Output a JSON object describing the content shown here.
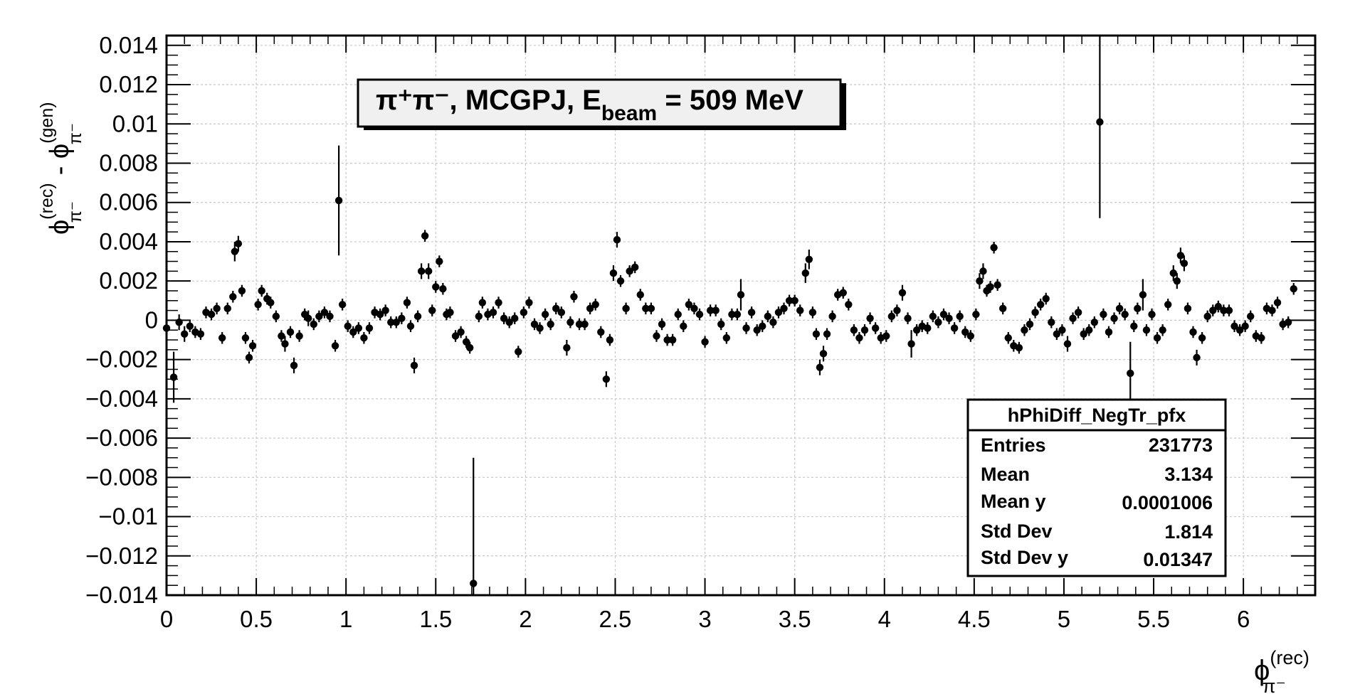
{
  "chart_data": {
    "type": "scatter",
    "title": "π⁺π⁻, MCGPJ, E",
    "title_sub": "beam",
    "title_tail": " = 509 MeV",
    "xlabel": "ϕ",
    "xlabel_sup": "(rec)",
    "xlabel_sub": "π⁻",
    "ylabel_main": "ϕ",
    "ylabel_sup1": "(rec)",
    "ylabel_sub1": "π⁻",
    "ylabel_mid": " - ϕ",
    "ylabel_sup2": "(gen)",
    "ylabel_sub2": "π⁻",
    "xlim": [
      0,
      6.4
    ],
    "ylim": [
      -0.014,
      0.0145
    ],
    "grid": true,
    "x_ticks": [
      "0",
      "0.5",
      "1",
      "1.5",
      "2",
      "2.5",
      "3",
      "3.5",
      "4",
      "4.5",
      "5",
      "5.5",
      "6"
    ],
    "x_tick_values": [
      0,
      0.5,
      1,
      1.5,
      2,
      2.5,
      3,
      3.5,
      4,
      4.5,
      5,
      5.5,
      6
    ],
    "y_ticks": [
      "0.014",
      "0.012",
      "0.01",
      "0.008",
      "0.006",
      "0.004",
      "0.002",
      "0",
      "−0.002",
      "−0.004",
      "−0.006",
      "−0.008",
      "−0.01",
      "−0.012",
      "−0.014"
    ],
    "y_tick_values": [
      0.014,
      0.012,
      0.01,
      0.008,
      0.006,
      0.004,
      0.002,
      0,
      -0.002,
      -0.004,
      -0.006,
      -0.008,
      -0.01,
      -0.012,
      -0.014
    ],
    "stats_box": {
      "name": "hPhiDiff_NegTr_pfx",
      "rows": [
        {
          "label": "Entries",
          "value": "231773"
        },
        {
          "label": "Mean",
          "value": "3.134"
        },
        {
          "label": "Mean y",
          "value": "0.0001006"
        },
        {
          "label": "Std Dev",
          "value": "1.814"
        },
        {
          "label": "Std Dev y",
          "value": "0.01347"
        }
      ]
    },
    "points": [
      [
        0.0,
        -0.0004,
        0.0003
      ],
      [
        0.04,
        -0.0029,
        0.0013
      ],
      [
        0.07,
        -0.0001,
        0.0004
      ],
      [
        0.1,
        -0.0007,
        0.0004
      ],
      [
        0.13,
        -0.0003,
        0.0003
      ],
      [
        0.16,
        -0.0006,
        0.0003
      ],
      [
        0.19,
        -0.0007,
        0.0003
      ],
      [
        0.22,
        0.0004,
        0.0003
      ],
      [
        0.25,
        0.0003,
        0.0003
      ],
      [
        0.28,
        0.0006,
        0.0003
      ],
      [
        0.31,
        -0.0009,
        0.0003
      ],
      [
        0.34,
        0.0006,
        0.0003
      ],
      [
        0.37,
        0.0012,
        0.0003
      ],
      [
        0.38,
        0.0035,
        0.0005
      ],
      [
        0.4,
        0.0039,
        0.0004
      ],
      [
        0.42,
        0.0015,
        0.0003
      ],
      [
        0.44,
        -0.0009,
        0.0003
      ],
      [
        0.46,
        -0.0019,
        0.0003
      ],
      [
        0.48,
        -0.0013,
        0.0003
      ],
      [
        0.51,
        0.0008,
        0.0003
      ],
      [
        0.53,
        0.0015,
        0.0003
      ],
      [
        0.56,
        0.0011,
        0.0003
      ],
      [
        0.58,
        0.0009,
        0.0003
      ],
      [
        0.61,
        0.0002,
        0.0003
      ],
      [
        0.64,
        -0.0008,
        0.0003
      ],
      [
        0.66,
        -0.0012,
        0.0004
      ],
      [
        0.69,
        -0.0006,
        0.0003
      ],
      [
        0.71,
        -0.0023,
        0.0004
      ],
      [
        0.74,
        -0.0008,
        0.0003
      ],
      [
        0.77,
        0.0003,
        0.0003
      ],
      [
        0.79,
        0.0001,
        0.0004
      ],
      [
        0.82,
        -0.0002,
        0.0003
      ],
      [
        0.85,
        0.0002,
        0.0003
      ],
      [
        0.88,
        0.0004,
        0.0003
      ],
      [
        0.91,
        0.0002,
        0.0003
      ],
      [
        0.94,
        -0.0013,
        0.0003
      ],
      [
        0.96,
        0.0061,
        0.0028
      ],
      [
        0.98,
        0.0008,
        0.0003
      ],
      [
        1.01,
        -0.0003,
        0.0003
      ],
      [
        1.04,
        -0.0006,
        0.0003
      ],
      [
        1.07,
        -0.0004,
        0.0003
      ],
      [
        1.1,
        -0.0009,
        0.0003
      ],
      [
        1.13,
        -0.0004,
        0.0003
      ],
      [
        1.16,
        0.0004,
        0.0003
      ],
      [
        1.19,
        0.0003,
        0.0003
      ],
      [
        1.22,
        0.0005,
        0.0003
      ],
      [
        1.25,
        -0.0001,
        0.0003
      ],
      [
        1.28,
        -0.0001,
        0.0003
      ],
      [
        1.31,
        0.0001,
        0.0003
      ],
      [
        1.34,
        0.0009,
        0.0003
      ],
      [
        1.36,
        -0.0003,
        0.0003
      ],
      [
        1.38,
        -0.0023,
        0.0004
      ],
      [
        1.4,
        0.0002,
        0.0003
      ],
      [
        1.42,
        0.0025,
        0.0004
      ],
      [
        1.44,
        0.0043,
        0.0003
      ],
      [
        1.46,
        0.0025,
        0.0004
      ],
      [
        1.48,
        0.0005,
        0.0003
      ],
      [
        1.5,
        0.0017,
        0.0003
      ],
      [
        1.52,
        0.003,
        0.0003
      ],
      [
        1.54,
        0.0016,
        0.0003
      ],
      [
        1.56,
        0.0003,
        0.0003
      ],
      [
        1.58,
        0.0004,
        0.0003
      ],
      [
        1.61,
        -0.0008,
        0.0003
      ],
      [
        1.64,
        -0.0006,
        0.0003
      ],
      [
        1.67,
        -0.0011,
        0.0003
      ],
      [
        1.69,
        -0.0014,
        0.0003
      ],
      [
        1.71,
        -0.0134,
        0.0064
      ],
      [
        1.74,
        0.0002,
        0.0003
      ],
      [
        1.76,
        0.0009,
        0.0003
      ],
      [
        1.79,
        0.0003,
        0.0003
      ],
      [
        1.82,
        0.0004,
        0.0003
      ],
      [
        1.85,
        0.0009,
        0.0003
      ],
      [
        1.88,
        0.0001,
        0.0003
      ],
      [
        1.91,
        -0.0001,
        0.0003
      ],
      [
        1.94,
        0.0001,
        0.0003
      ],
      [
        1.96,
        -0.0016,
        0.0003
      ],
      [
        1.99,
        0.0004,
        0.0003
      ],
      [
        2.02,
        0.0009,
        0.0003
      ],
      [
        2.05,
        -0.0002,
        0.0003
      ],
      [
        2.08,
        -0.0004,
        0.0003
      ],
      [
        2.11,
        0.0003,
        0.0003
      ],
      [
        2.14,
        -0.0002,
        0.0003
      ],
      [
        2.17,
        0.0006,
        0.0003
      ],
      [
        2.2,
        0.0004,
        0.0003
      ],
      [
        2.23,
        -0.0014,
        0.0004
      ],
      [
        2.25,
        -0.0001,
        0.0003
      ],
      [
        2.27,
        0.0012,
        0.0003
      ],
      [
        2.3,
        -0.0002,
        0.0003
      ],
      [
        2.33,
        -0.0002,
        0.0003
      ],
      [
        2.36,
        0.0006,
        0.0003
      ],
      [
        2.39,
        0.0008,
        0.0003
      ],
      [
        2.42,
        -0.0006,
        0.0003
      ],
      [
        2.45,
        -0.003,
        0.0004
      ],
      [
        2.47,
        -0.001,
        0.0003
      ],
      [
        2.49,
        0.0024,
        0.0004
      ],
      [
        2.51,
        0.0041,
        0.0004
      ],
      [
        2.53,
        0.002,
        0.0003
      ],
      [
        2.56,
        0.0006,
        0.0003
      ],
      [
        2.58,
        0.0025,
        0.0003
      ],
      [
        2.61,
        0.0027,
        0.0003
      ],
      [
        2.64,
        0.0013,
        0.0003
      ],
      [
        2.67,
        0.0006,
        0.0003
      ],
      [
        2.7,
        0.0006,
        0.0003
      ],
      [
        2.73,
        -0.0008,
        0.0003
      ],
      [
        2.76,
        -0.0002,
        0.0003
      ],
      [
        2.79,
        -0.001,
        0.0003
      ],
      [
        2.82,
        -0.001,
        0.0003
      ],
      [
        2.85,
        0.0003,
        0.0003
      ],
      [
        2.88,
        -0.0003,
        0.0003
      ],
      [
        2.91,
        0.0008,
        0.0003
      ],
      [
        2.94,
        0.0006,
        0.0003
      ],
      [
        2.97,
        0.0003,
        0.0003
      ],
      [
        3.0,
        -0.0011,
        0.0003
      ],
      [
        3.03,
        0.0005,
        0.0003
      ],
      [
        3.06,
        0.0005,
        0.0003
      ],
      [
        3.09,
        -0.0002,
        0.0003
      ],
      [
        3.12,
        -0.0009,
        0.0003
      ],
      [
        3.15,
        0.0003,
        0.0003
      ],
      [
        3.18,
        0.0003,
        0.0003
      ],
      [
        3.2,
        0.0013,
        0.0008
      ],
      [
        3.23,
        -0.0004,
        0.0003
      ],
      [
        3.26,
        0.0004,
        0.0003
      ],
      [
        3.29,
        -0.0005,
        0.0003
      ],
      [
        3.32,
        -0.0003,
        0.0003
      ],
      [
        3.35,
        0.0002,
        0.0003
      ],
      [
        3.38,
        -0.0001,
        0.0003
      ],
      [
        3.41,
        0.0004,
        0.0003
      ],
      [
        3.44,
        0.0006,
        0.0003
      ],
      [
        3.47,
        0.001,
        0.0003
      ],
      [
        3.5,
        0.001,
        0.0003
      ],
      [
        3.53,
        0.0005,
        0.0003
      ],
      [
        3.56,
        0.0024,
        0.0005
      ],
      [
        3.58,
        0.0031,
        0.0005
      ],
      [
        3.6,
        0.0004,
        0.0003
      ],
      [
        3.62,
        -0.0007,
        0.0003
      ],
      [
        3.64,
        -0.0024,
        0.0004
      ],
      [
        3.66,
        -0.0017,
        0.0004
      ],
      [
        3.68,
        -0.0007,
        0.0003
      ],
      [
        3.71,
        0.0002,
        0.0003
      ],
      [
        3.74,
        0.0013,
        0.0003
      ],
      [
        3.77,
        0.0014,
        0.0003
      ],
      [
        3.8,
        0.0008,
        0.0003
      ],
      [
        3.83,
        -0.0005,
        0.0003
      ],
      [
        3.86,
        -0.0009,
        0.0003
      ],
      [
        3.89,
        -0.0005,
        0.0003
      ],
      [
        3.92,
        0.0001,
        0.0003
      ],
      [
        3.95,
        -0.0004,
        0.0003
      ],
      [
        3.98,
        -0.0009,
        0.0003
      ],
      [
        4.01,
        -0.0008,
        0.0003
      ],
      [
        4.04,
        0.0002,
        0.0003
      ],
      [
        4.07,
        0.0005,
        0.0003
      ],
      [
        4.1,
        0.0014,
        0.0004
      ],
      [
        4.13,
        0.0001,
        0.0003
      ],
      [
        4.15,
        -0.0012,
        0.0007
      ],
      [
        4.18,
        -0.0005,
        0.0003
      ],
      [
        4.21,
        -0.0003,
        0.0003
      ],
      [
        4.24,
        -0.0004,
        0.0003
      ],
      [
        4.27,
        0.0002,
        0.0003
      ],
      [
        4.3,
        -0.0001,
        0.0003
      ],
      [
        4.33,
        0.0003,
        0.0003
      ],
      [
        4.36,
        0.0001,
        0.0003
      ],
      [
        4.39,
        -0.0004,
        0.0003
      ],
      [
        4.42,
        0.0002,
        0.0003
      ],
      [
        4.45,
        -0.0006,
        0.0003
      ],
      [
        4.48,
        -0.0008,
        0.0003
      ],
      [
        4.51,
        0.0003,
        0.0003
      ],
      [
        4.53,
        0.002,
        0.0004
      ],
      [
        4.55,
        0.0025,
        0.0004
      ],
      [
        4.57,
        0.0015,
        0.0003
      ],
      [
        4.59,
        0.0017,
        0.0003
      ],
      [
        4.61,
        0.0037,
        0.0003
      ],
      [
        4.63,
        0.0018,
        0.0003
      ],
      [
        4.66,
        0.0006,
        0.0003
      ],
      [
        4.69,
        -0.0009,
        0.0003
      ],
      [
        4.72,
        -0.0013,
        0.0003
      ],
      [
        4.75,
        -0.0014,
        0.0003
      ],
      [
        4.78,
        -0.0005,
        0.0003
      ],
      [
        4.81,
        -0.0002,
        0.0003
      ],
      [
        4.84,
        0.0004,
        0.0003
      ],
      [
        4.87,
        0.0008,
        0.0003
      ],
      [
        4.9,
        0.0011,
        0.0003
      ],
      [
        4.93,
        -0.0001,
        0.0003
      ],
      [
        4.96,
        -0.0007,
        0.0003
      ],
      [
        4.99,
        -0.0005,
        0.0003
      ],
      [
        5.02,
        -0.0012,
        0.0004
      ],
      [
        5.05,
        0.0001,
        0.0003
      ],
      [
        5.08,
        0.0004,
        0.0003
      ],
      [
        5.11,
        -0.0007,
        0.0003
      ],
      [
        5.14,
        -0.0005,
        0.0003
      ],
      [
        5.17,
        -0.0001,
        0.0003
      ],
      [
        5.2,
        0.0101,
        0.0049
      ],
      [
        5.22,
        0.0003,
        0.0003
      ],
      [
        5.25,
        -0.0006,
        0.0003
      ],
      [
        5.28,
        0.0001,
        0.0003
      ],
      [
        5.31,
        0.0006,
        0.0003
      ],
      [
        5.34,
        0.0003,
        0.0003
      ],
      [
        5.37,
        -0.0027,
        0.0016
      ],
      [
        5.39,
        -0.0003,
        0.0003
      ],
      [
        5.41,
        0.0006,
        0.0003
      ],
      [
        5.44,
        0.0013,
        0.0008
      ],
      [
        5.46,
        -0.0005,
        0.0003
      ],
      [
        5.49,
        0.0003,
        0.0003
      ],
      [
        5.52,
        -0.0009,
        0.0003
      ],
      [
        5.55,
        -0.0005,
        0.0003
      ],
      [
        5.58,
        0.0008,
        0.0003
      ],
      [
        5.61,
        0.0024,
        0.0004
      ],
      [
        5.63,
        0.002,
        0.0004
      ],
      [
        5.65,
        0.0033,
        0.0004
      ],
      [
        5.67,
        0.0029,
        0.0004
      ],
      [
        5.69,
        0.0006,
        0.0003
      ],
      [
        5.72,
        -0.0006,
        0.0003
      ],
      [
        5.74,
        -0.0019,
        0.0004
      ],
      [
        5.77,
        -0.0009,
        0.0003
      ],
      [
        5.8,
        0.0002,
        0.0003
      ],
      [
        5.83,
        0.0005,
        0.0003
      ],
      [
        5.86,
        0.0007,
        0.0003
      ],
      [
        5.89,
        0.0005,
        0.0003
      ],
      [
        5.92,
        0.0005,
        0.0003
      ],
      [
        5.95,
        -0.0003,
        0.0003
      ],
      [
        5.98,
        -0.0005,
        0.0003
      ],
      [
        6.01,
        -0.0003,
        0.0003
      ],
      [
        6.04,
        0.0002,
        0.0003
      ],
      [
        6.07,
        -0.0008,
        0.0003
      ],
      [
        6.1,
        -0.0009,
        0.0003
      ],
      [
        6.13,
        0.0006,
        0.0003
      ],
      [
        6.16,
        0.0005,
        0.0003
      ],
      [
        6.19,
        0.0009,
        0.0003
      ],
      [
        6.22,
        -0.0002,
        0.0003
      ],
      [
        6.25,
        -0.0001,
        0.0003
      ],
      [
        6.28,
        0.0016,
        0.0003
      ]
    ]
  }
}
